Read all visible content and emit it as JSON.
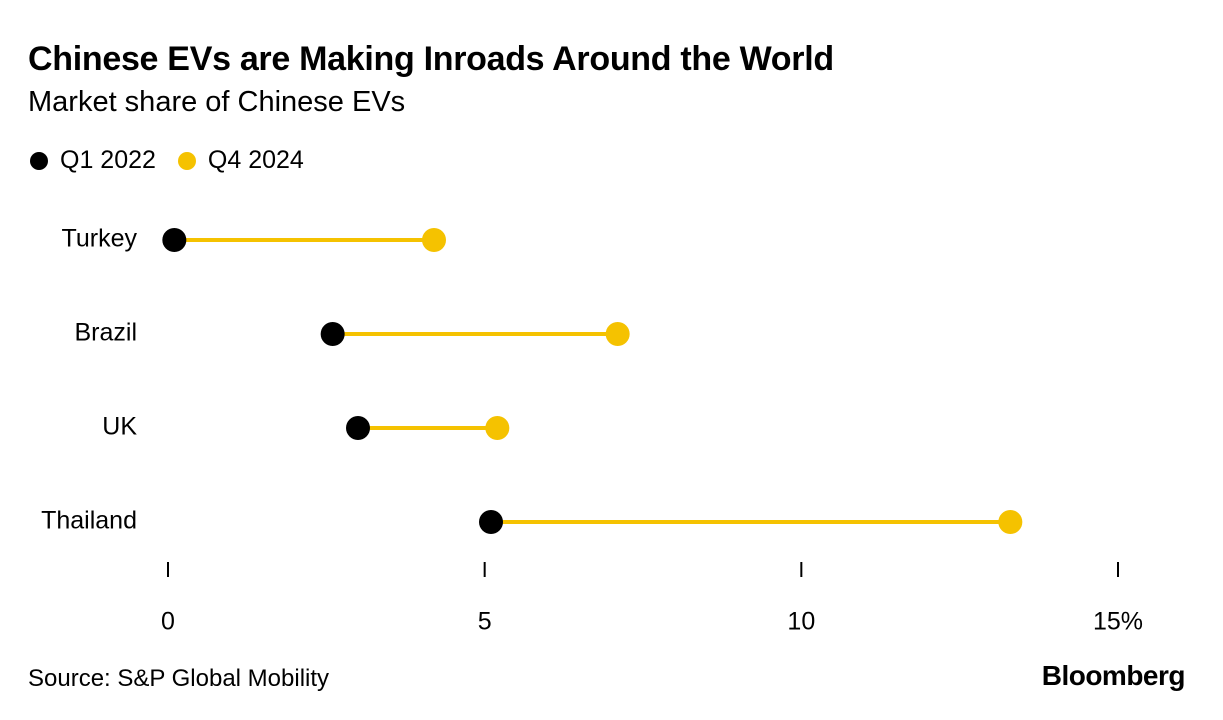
{
  "header": {
    "title": "Chinese EVs are Making Inroads Around the World",
    "subtitle": "Market share of Chinese EVs"
  },
  "legend": [
    {
      "label": "Q1 2022",
      "color": "#000000"
    },
    {
      "label": "Q4 2024",
      "color": "#F5C200"
    }
  ],
  "chart_data": {
    "type": "dumbbell",
    "title": "Chinese EVs are Making Inroads Around the World",
    "subtitle": "Market share of Chinese EVs",
    "categories": [
      "Turkey",
      "Brazil",
      "UK",
      "Thailand"
    ],
    "series": [
      {
        "name": "Q1 2022",
        "color": "#000000",
        "values": [
          0.1,
          2.6,
          3.0,
          5.1
        ]
      },
      {
        "name": "Q4 2024",
        "color": "#F5C200",
        "values": [
          4.2,
          7.1,
          5.2,
          13.3
        ]
      }
    ],
    "connector_color": "#F5C200",
    "xlim": [
      0,
      15
    ],
    "xticks": [
      0,
      5,
      10,
      15
    ],
    "xtick_labels": [
      "0",
      "5",
      "10",
      "15%"
    ],
    "grid": false
  },
  "footer": {
    "source": "Source: S&P Global Mobility",
    "brand": "Bloomberg"
  }
}
